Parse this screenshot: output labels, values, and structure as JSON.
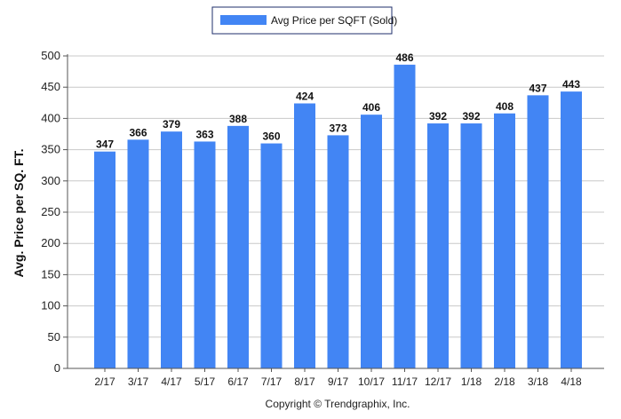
{
  "chart_data": {
    "type": "bar",
    "categories": [
      "2/17",
      "3/17",
      "4/17",
      "5/17",
      "6/17",
      "7/17",
      "8/17",
      "9/17",
      "10/17",
      "11/17",
      "12/17",
      "1/18",
      "2/18",
      "3/18",
      "4/18"
    ],
    "series": [
      {
        "name": "Avg Price per SQFT (Sold)",
        "values": [
          347,
          366,
          379,
          363,
          388,
          360,
          424,
          373,
          406,
          486,
          392,
          392,
          408,
          437,
          443
        ],
        "color": "#4285f4"
      }
    ],
    "ylabel": "Avg. Price per SQ. FT.",
    "xlabel": "",
    "ylim": [
      0,
      500
    ],
    "yticks": [
      0,
      50,
      100,
      150,
      200,
      250,
      300,
      350,
      400,
      450,
      500
    ],
    "grid": true,
    "legend": "top-center",
    "data_labels": true
  },
  "credit": "Copyright © Trendgraphix, Inc."
}
